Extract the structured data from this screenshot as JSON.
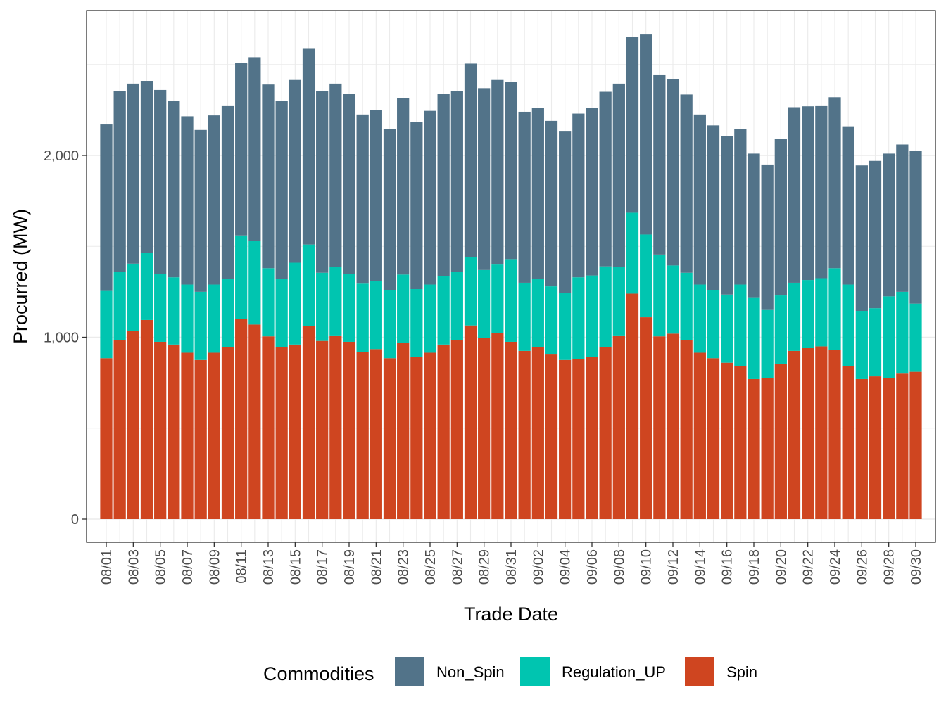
{
  "chart_data": {
    "type": "bar",
    "stacked": true,
    "title": "",
    "xlabel": "Trade Date",
    "ylabel": "Procurred (MW)",
    "ylim": [
      -130,
      2800
    ],
    "yticks": [
      0,
      1000,
      2000
    ],
    "ytick_labels": [
      "0",
      "1,000",
      "2,000"
    ],
    "xtick_labels": [
      "08/01",
      "08/03",
      "08/05",
      "08/07",
      "08/09",
      "08/11",
      "08/13",
      "08/15",
      "08/17",
      "08/19",
      "08/21",
      "08/23",
      "08/25",
      "08/27",
      "08/29",
      "08/31",
      "09/02",
      "09/04",
      "09/06",
      "09/08",
      "09/10",
      "09/12",
      "09/14",
      "09/16",
      "09/18",
      "09/20",
      "09/22",
      "09/24",
      "09/26",
      "09/28",
      "09/30"
    ],
    "categories": [
      "08/01",
      "08/02",
      "08/03",
      "08/04",
      "08/05",
      "08/06",
      "08/07",
      "08/08",
      "08/09",
      "08/10",
      "08/11",
      "08/12",
      "08/13",
      "08/14",
      "08/15",
      "08/16",
      "08/17",
      "08/18",
      "08/19",
      "08/20",
      "08/21",
      "08/22",
      "08/23",
      "08/24",
      "08/25",
      "08/26",
      "08/27",
      "08/28",
      "08/29",
      "08/30",
      "08/31",
      "09/01",
      "09/02",
      "09/03",
      "09/04",
      "09/05",
      "09/06",
      "09/07",
      "09/08",
      "09/09",
      "09/10",
      "09/11",
      "09/12",
      "09/13",
      "09/14",
      "09/15",
      "09/16",
      "09/17",
      "09/18",
      "09/19",
      "09/20",
      "09/21",
      "09/22",
      "09/23",
      "09/24",
      "09/25",
      "09/26",
      "09/27",
      "09/28",
      "09/29",
      "09/30"
    ],
    "series": [
      {
        "name": "Spin",
        "color": "#cf4520",
        "values": [
          885,
          985,
          1035,
          1095,
          975,
          960,
          915,
          875,
          915,
          945,
          1100,
          1070,
          1005,
          945,
          960,
          1060,
          980,
          1010,
          975,
          920,
          935,
          885,
          970,
          890,
          915,
          960,
          985,
          1065,
          995,
          1025,
          975,
          925,
          945,
          905,
          875,
          880,
          890,
          945,
          1010,
          1240,
          1110,
          1005,
          1020,
          985,
          915,
          885,
          860,
          840,
          770,
          775,
          855,
          925,
          940,
          950,
          930,
          840,
          770,
          785,
          775,
          800,
          810
        ]
      },
      {
        "name": "Regulation_UP",
        "color": "#00c5b0",
        "values": [
          370,
          375,
          370,
          370,
          375,
          370,
          375,
          375,
          375,
          375,
          460,
          460,
          375,
          375,
          450,
          450,
          375,
          375,
          375,
          375,
          375,
          375,
          375,
          375,
          375,
          375,
          375,
          375,
          375,
          375,
          455,
          375,
          375,
          375,
          370,
          450,
          450,
          445,
          375,
          445,
          455,
          450,
          375,
          370,
          375,
          375,
          375,
          450,
          450,
          375,
          375,
          375,
          375,
          375,
          450,
          450,
          375,
          375,
          450,
          450,
          375
        ]
      },
      {
        "name": "Non_Spin",
        "color": "#527389",
        "values": [
          915,
          995,
          990,
          945,
          1010,
          970,
          925,
          890,
          930,
          955,
          950,
          1010,
          1010,
          980,
          1005,
          1080,
          1000,
          1010,
          990,
          930,
          940,
          885,
          970,
          920,
          955,
          1005,
          995,
          1065,
          1000,
          1015,
          975,
          940,
          940,
          910,
          890,
          900,
          920,
          960,
          1010,
          965,
          1100,
          990,
          1025,
          980,
          935,
          905,
          870,
          855,
          790,
          800,
          860,
          965,
          955,
          950,
          940,
          870,
          800,
          810,
          785,
          810,
          840
        ]
      }
    ],
    "legend": {
      "title": "Commodities",
      "position": "bottom",
      "items": [
        {
          "label": "Non_Spin",
          "color": "#527389"
        },
        {
          "label": "Regulation_UP",
          "color": "#00c5b0"
        },
        {
          "label": "Spin",
          "color": "#cf4520"
        }
      ]
    },
    "grid": true
  }
}
